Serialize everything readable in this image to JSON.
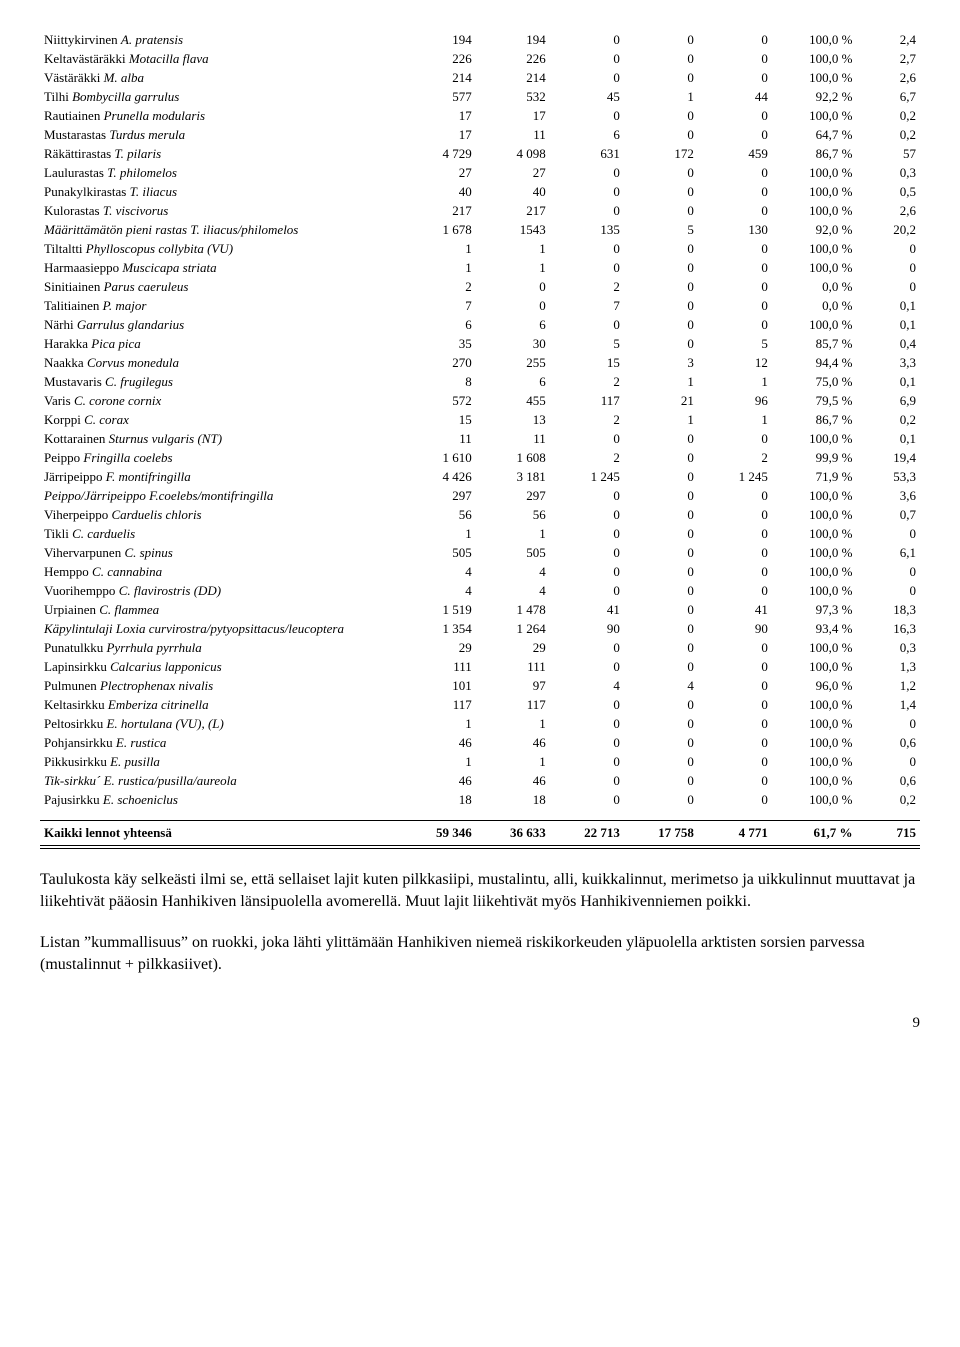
{
  "rows": [
    {
      "fi": "Niittykirvinen",
      "la": "A. pratensis",
      "c": [
        "194",
        "194",
        "0",
        "0",
        "0",
        "100,0 %",
        "2,4"
      ]
    },
    {
      "fi": "Keltavästäräkki",
      "la": "Motacilla flava",
      "c": [
        "226",
        "226",
        "0",
        "0",
        "0",
        "100,0 %",
        "2,7"
      ]
    },
    {
      "fi": "Västäräkki",
      "la": "M. alba",
      "c": [
        "214",
        "214",
        "0",
        "0",
        "0",
        "100,0 %",
        "2,6"
      ]
    },
    {
      "fi": "Tilhi",
      "la": "Bombycilla garrulus",
      "c": [
        "577",
        "532",
        "45",
        "1",
        "44",
        "92,2 %",
        "6,7"
      ]
    },
    {
      "fi": "Rautiainen",
      "la": "Prunella modularis",
      "c": [
        "17",
        "17",
        "0",
        "0",
        "0",
        "100,0 %",
        "0,2"
      ]
    },
    {
      "fi": "Mustarastas",
      "la": "Turdus merula",
      "c": [
        "17",
        "11",
        "6",
        "0",
        "0",
        "64,7 %",
        "0,2"
      ]
    },
    {
      "fi": "Räkättirastas",
      "la": "T. pilaris",
      "c": [
        "4 729",
        "4 098",
        "631",
        "172",
        "459",
        "86,7 %",
        "57"
      ]
    },
    {
      "fi": "Laulurastas",
      "la": "T. philomelos",
      "c": [
        "27",
        "27",
        "0",
        "0",
        "0",
        "100,0 %",
        "0,3"
      ]
    },
    {
      "fi": "Punakylkirastas",
      "la": "T. iliacus",
      "c": [
        "40",
        "40",
        "0",
        "0",
        "0",
        "100,0 %",
        "0,5"
      ]
    },
    {
      "fi": "Kulorastas",
      "la": "T. viscivorus",
      "c": [
        "217",
        "217",
        "0",
        "0",
        "0",
        "100,0 %",
        "2,6"
      ]
    },
    {
      "fi": "Määrittämätön pieni rastas",
      "la": "T. iliacus/philomelos",
      "italic_fi": true,
      "c": [
        "1 678",
        "1543",
        "135",
        "5",
        "130",
        "92,0 %",
        "20,2"
      ]
    },
    {
      "fi": "Tiltaltti",
      "la": "Phylloscopus collybita (VU)",
      "c": [
        "1",
        "1",
        "0",
        "0",
        "0",
        "100,0 %",
        "0"
      ]
    },
    {
      "fi": "Harmaasieppo",
      "la": "Muscicapa striata",
      "c": [
        "1",
        "1",
        "0",
        "0",
        "0",
        "100,0 %",
        "0"
      ]
    },
    {
      "fi": "Sinitiainen",
      "la": "Parus caeruleus",
      "c": [
        "2",
        "0",
        "2",
        "0",
        "0",
        "0,0 %",
        "0"
      ]
    },
    {
      "fi": "Talitiainen",
      "la": "P. major",
      "c": [
        "7",
        "0",
        "7",
        "0",
        "0",
        "0,0 %",
        "0,1"
      ]
    },
    {
      "fi": "Närhi",
      "la": "Garrulus glandarius",
      "c": [
        "6",
        "6",
        "0",
        "0",
        "0",
        "100,0 %",
        "0,1"
      ]
    },
    {
      "fi": "Harakka",
      "la": "Pica pica",
      "c": [
        "35",
        "30",
        "5",
        "0",
        "5",
        "85,7 %",
        "0,4"
      ]
    },
    {
      "fi": "Naakka",
      "la": "Corvus monedula",
      "c": [
        "270",
        "255",
        "15",
        "3",
        "12",
        "94,4 %",
        "3,3"
      ]
    },
    {
      "fi": "Mustavaris",
      "la": "C. frugilegus",
      "c": [
        "8",
        "6",
        "2",
        "1",
        "1",
        "75,0 %",
        "0,1"
      ]
    },
    {
      "fi": "Varis",
      "la": "C. corone cornix",
      "c": [
        "572",
        "455",
        "117",
        "21",
        "96",
        "79,5 %",
        "6,9"
      ]
    },
    {
      "fi": "Korppi",
      "la": "C. corax",
      "c": [
        "15",
        "13",
        "2",
        "1",
        "1",
        "86,7 %",
        "0,2"
      ]
    },
    {
      "fi": "Kottarainen",
      "la": "Sturnus vulgaris (NT)",
      "c": [
        "11",
        "11",
        "0",
        "0",
        "0",
        "100,0 %",
        "0,1"
      ]
    },
    {
      "fi": "Peippo",
      "la": "Fringilla coelebs",
      "c": [
        "1 610",
        "1 608",
        "2",
        "0",
        "2",
        "99,9 %",
        "19,4"
      ]
    },
    {
      "fi": "Järripeippo",
      "la": "F. montifringilla",
      "c": [
        "4 426",
        "3 181",
        "1 245",
        "0",
        "1 245",
        "71,9 %",
        "53,3"
      ]
    },
    {
      "fi": "Peippo/Järripeippo",
      "la": "F.coelebs/montifringilla",
      "italic_fi": true,
      "c": [
        "297",
        "297",
        "0",
        "0",
        "0",
        "100,0 %",
        "3,6"
      ]
    },
    {
      "fi": "Viherpeippo",
      "la": "Carduelis chloris",
      "c": [
        "56",
        "56",
        "0",
        "0",
        "0",
        "100,0 %",
        "0,7"
      ]
    },
    {
      "fi": "Tikli",
      "la": "C. carduelis",
      "c": [
        "1",
        "1",
        "0",
        "0",
        "0",
        "100,0 %",
        "0"
      ]
    },
    {
      "fi": "Vihervarpunen",
      "la": "C. spinus",
      "c": [
        "505",
        "505",
        "0",
        "0",
        "0",
        "100,0 %",
        "6,1"
      ]
    },
    {
      "fi": "Hemppo",
      "la": "C. cannabina",
      "c": [
        "4",
        "4",
        "0",
        "0",
        "0",
        "100,0 %",
        "0"
      ]
    },
    {
      "fi": "Vuorihemppo",
      "la": "C. flavirostris (DD)",
      "c": [
        "4",
        "4",
        "0",
        "0",
        "0",
        "100,0 %",
        "0"
      ]
    },
    {
      "fi": "Urpiainen",
      "la": "C. flammea",
      "c": [
        "1 519",
        "1 478",
        "41",
        "0",
        "41",
        "97,3 %",
        "18,3"
      ]
    },
    {
      "fi": "Käpylintulaji",
      "la": "Loxia curvirostra/pytyopsittacus/leucoptera",
      "italic_fi": true,
      "c": [
        "1 354",
        "1 264",
        "90",
        "0",
        "90",
        "93,4 %",
        "16,3"
      ]
    },
    {
      "fi": "Punatulkku",
      "la": "Pyrrhula pyrrhula",
      "c": [
        "29",
        "29",
        "0",
        "0",
        "0",
        "100,0 %",
        "0,3"
      ]
    },
    {
      "fi": "Lapinsirkku",
      "la": "Calcarius lapponicus",
      "c": [
        "111",
        "111",
        "0",
        "0",
        "0",
        "100,0 %",
        "1,3"
      ]
    },
    {
      "fi": "Pulmunen",
      "la": "Plectrophenax nivalis",
      "c": [
        "101",
        "97",
        "4",
        "4",
        "0",
        "96,0 %",
        "1,2"
      ]
    },
    {
      "fi": "Keltasirkku",
      "la": "Emberiza citrinella",
      "c": [
        "117",
        "117",
        "0",
        "0",
        "0",
        "100,0 %",
        "1,4"
      ]
    },
    {
      "fi": "Peltosirkku",
      "la": "E. hortulana (VU), (L)",
      "c": [
        "1",
        "1",
        "0",
        "0",
        "0",
        "100,0 %",
        "0"
      ]
    },
    {
      "fi": "Pohjansirkku",
      "la": "E. rustica",
      "c": [
        "46",
        "46",
        "0",
        "0",
        "0",
        "100,0 %",
        "0,6"
      ]
    },
    {
      "fi": "Pikkusirkku",
      "la": "E. pusilla",
      "c": [
        "1",
        "1",
        "0",
        "0",
        "0",
        "100,0 %",
        "0"
      ]
    },
    {
      "fi": "Tik-sirkku´",
      "la": "E. rustica/pusilla/aureola",
      "italic_fi": true,
      "c": [
        "46",
        "46",
        "0",
        "0",
        "0",
        "100,0 %",
        "0,6"
      ]
    },
    {
      "fi": "Pajusirkku",
      "la": "E. schoeniclus",
      "c": [
        "18",
        "18",
        "0",
        "0",
        "0",
        "100,0 %",
        "0,2"
      ]
    }
  ],
  "total": {
    "label": "Kaikki lennot yhteensä",
    "c": [
      "59 346",
      "36 633",
      "22 713",
      "17 758",
      "4 771",
      "61,7 %",
      "715"
    ]
  },
  "para1": "Taulukosta käy selkeästi ilmi se, että sellaiset lajit kuten pilkkasiipi, mustalintu, alli, kuikkalinnut, merimetso ja uikkulinnut muuttavat ja liikehtivät pääosin Hanhikiven länsipuolella avomerellä. Muut lajit liikehtivät myös Hanhikivenniemen poikki.",
  "para2": "Listan ”kummallisuus” on ruokki, joka lähti ylittämään Hanhikiven niemeä riskikorkeuden yläpuolella arktisten sorsien parvessa (mustalinnut + pilkkasiivet).",
  "page_num": "9"
}
